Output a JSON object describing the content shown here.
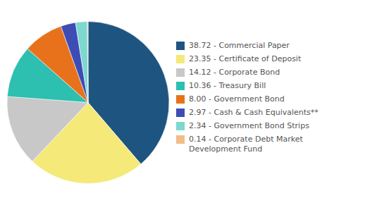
{
  "chart_data": {
    "type": "pie",
    "categories": [
      "38.72 - Commercial Paper",
      "23.35 - Certificate of Deposit",
      "14.12 - Corporate Bond",
      "10.36 - Treasury Bill",
      "8.00 - Government Bond",
      "2.97 - Cash & Cash Equivalents**",
      "2.34 - Government Bond Strips",
      "0.14 - Corporate Debt Market\nDevelopment Fund"
    ],
    "values": [
      38.72,
      23.35,
      14.12,
      10.36,
      8.0,
      2.97,
      2.34,
      0.14
    ],
    "colors": [
      "#1e5480",
      "#f5e97a",
      "#c8c8c8",
      "#2dbfb0",
      "#e8721c",
      "#3d4db5",
      "#7dd8d0",
      "#f0be8a"
    ],
    "legend": "right"
  }
}
